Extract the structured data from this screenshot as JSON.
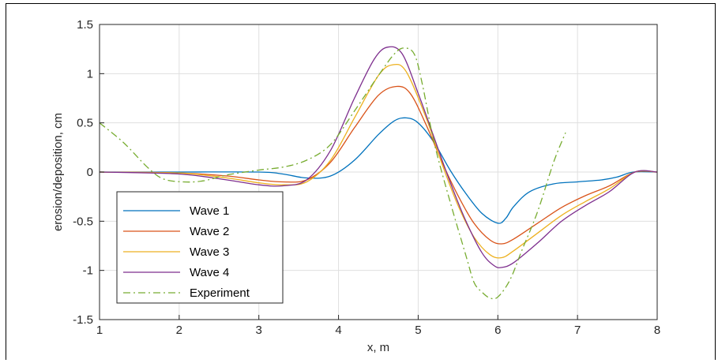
{
  "chart_data": {
    "type": "line",
    "xlabel": "x, m",
    "ylabel": "erosion/deposition, cm",
    "xlim": [
      1,
      8
    ],
    "ylim": [
      -1.5,
      1.5
    ],
    "xticks": [
      "1",
      "2",
      "3",
      "4",
      "5",
      "6",
      "7",
      "8"
    ],
    "yticks": [
      "1.5",
      "1",
      "0.5",
      "0",
      "-0.5",
      "-1",
      "-1.5"
    ],
    "grid": true,
    "legend_position": "bottom-left",
    "series": [
      {
        "name": "Wave 1",
        "color": "#0072BD",
        "style": "solid",
        "x": [
          1.0,
          2.0,
          3.0,
          3.3,
          3.6,
          3.9,
          4.2,
          4.5,
          4.7,
          4.85,
          5.0,
          5.2,
          5.4,
          5.6,
          5.8,
          6.0,
          6.1,
          6.2,
          6.4,
          6.7,
          7.0,
          7.3,
          7.5,
          7.7,
          8.0
        ],
        "y": [
          0.0,
          0.0,
          0.0,
          -0.02,
          -0.06,
          -0.04,
          0.12,
          0.38,
          0.52,
          0.55,
          0.5,
          0.3,
          0.02,
          -0.22,
          -0.42,
          -0.52,
          -0.47,
          -0.35,
          -0.2,
          -0.12,
          -0.1,
          -0.08,
          -0.05,
          0.0,
          0.0
        ]
      },
      {
        "name": "Wave 2",
        "color": "#D95319",
        "style": "solid",
        "x": [
          1.0,
          2.0,
          2.6,
          3.0,
          3.3,
          3.6,
          3.9,
          4.2,
          4.5,
          4.73,
          4.9,
          5.1,
          5.3,
          5.5,
          5.7,
          5.9,
          6.05,
          6.2,
          6.5,
          6.8,
          7.1,
          7.4,
          7.72,
          8.0
        ],
        "y": [
          0.0,
          -0.01,
          -0.04,
          -0.08,
          -0.1,
          -0.08,
          0.1,
          0.45,
          0.78,
          0.87,
          0.8,
          0.48,
          0.1,
          -0.24,
          -0.52,
          -0.69,
          -0.73,
          -0.68,
          -0.52,
          -0.36,
          -0.24,
          -0.14,
          0.0,
          0.0
        ]
      },
      {
        "name": "Wave 3",
        "color": "#EDB120",
        "style": "solid",
        "x": [
          1.0,
          2.0,
          2.6,
          3.0,
          3.3,
          3.6,
          3.9,
          4.2,
          4.5,
          4.68,
          4.85,
          5.1,
          5.3,
          5.5,
          5.7,
          5.9,
          6.05,
          6.2,
          6.5,
          6.8,
          7.1,
          7.4,
          7.72,
          8.0
        ],
        "y": [
          0.0,
          -0.01,
          -0.06,
          -0.11,
          -0.13,
          -0.1,
          0.12,
          0.55,
          0.98,
          1.09,
          1.02,
          0.55,
          0.08,
          -0.34,
          -0.66,
          -0.84,
          -0.87,
          -0.8,
          -0.62,
          -0.44,
          -0.3,
          -0.17,
          0.0,
          0.0
        ]
      },
      {
        "name": "Wave 4",
        "color": "#7E2F8E",
        "style": "solid",
        "x": [
          1.0,
          2.0,
          2.6,
          3.0,
          3.3,
          3.6,
          3.9,
          4.2,
          4.45,
          4.62,
          4.8,
          5.0,
          5.2,
          5.4,
          5.6,
          5.8,
          5.95,
          6.05,
          6.2,
          6.5,
          6.8,
          7.1,
          7.4,
          7.72,
          8.0
        ],
        "y": [
          0.0,
          -0.02,
          -0.08,
          -0.13,
          -0.14,
          -0.08,
          0.22,
          0.75,
          1.15,
          1.27,
          1.2,
          0.8,
          0.35,
          -0.1,
          -0.5,
          -0.82,
          -0.95,
          -0.97,
          -0.92,
          -0.72,
          -0.5,
          -0.34,
          -0.2,
          0.0,
          0.0
        ]
      },
      {
        "name": "Experiment",
        "color": "#77AC30",
        "style": "dashdot",
        "x": [
          1.0,
          1.3,
          1.6,
          1.8,
          2.05,
          2.3,
          2.6,
          3.0,
          3.3,
          3.6,
          3.9,
          4.2,
          4.5,
          4.7,
          4.82,
          4.95,
          5.05,
          5.2,
          5.4,
          5.6,
          5.7,
          5.8,
          5.9,
          6.0,
          6.15,
          6.3,
          6.5,
          6.7,
          6.85
        ],
        "y": [
          0.5,
          0.3,
          0.05,
          -0.07,
          -0.1,
          -0.09,
          -0.03,
          0.02,
          0.05,
          0.12,
          0.28,
          0.62,
          0.98,
          1.2,
          1.26,
          1.2,
          0.9,
          0.3,
          -0.3,
          -0.85,
          -1.12,
          -1.22,
          -1.28,
          -1.27,
          -1.1,
          -0.8,
          -0.4,
          0.1,
          0.4
        ]
      }
    ]
  }
}
